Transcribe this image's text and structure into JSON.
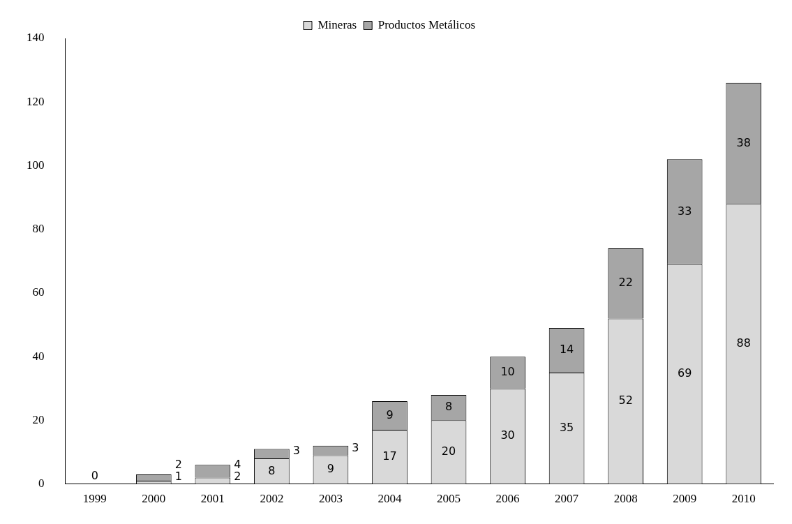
{
  "chart_data": {
    "type": "bar",
    "stacked": true,
    "categories": [
      "1999",
      "2000",
      "2001",
      "2002",
      "2003",
      "2004",
      "2005",
      "2006",
      "2007",
      "2008",
      "2009",
      "2010"
    ],
    "series": [
      {
        "name": "Mineras",
        "color": "#d9d9d9",
        "values": [
          0,
          1,
          2,
          8,
          9,
          17,
          20,
          30,
          35,
          52,
          69,
          88
        ],
        "value_labels": [
          "0",
          "1",
          "2",
          "8",
          "9",
          "17",
          "20",
          "30",
          "35",
          "52",
          "69",
          "88"
        ]
      },
      {
        "name": "Productos Metálicos",
        "color": "#a6a6a6",
        "values": [
          0,
          2,
          4,
          3,
          3,
          9,
          8,
          10,
          14,
          22,
          33,
          38
        ],
        "value_labels": [
          null,
          "2",
          "4",
          "3",
          "3",
          "9",
          "8",
          "10",
          "14",
          "22",
          "33",
          "38"
        ]
      }
    ],
    "ylim": [
      0,
      140
    ],
    "yticks": [
      0,
      20,
      40,
      60,
      80,
      100,
      120,
      140
    ],
    "grid": false,
    "legend": "top"
  }
}
